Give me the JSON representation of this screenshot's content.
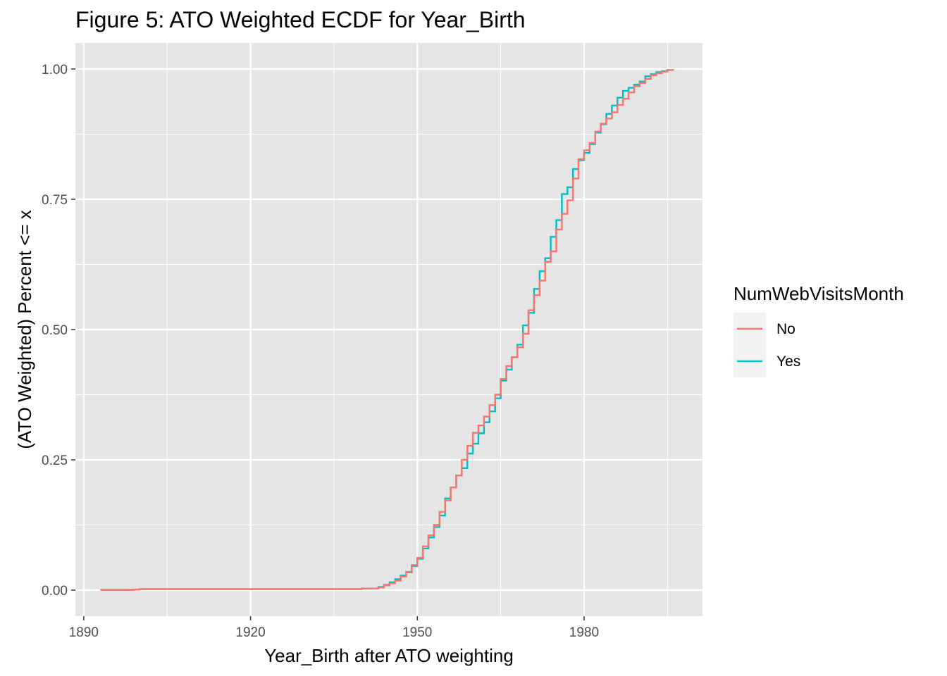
{
  "chart_data": {
    "type": "line",
    "step": true,
    "title": "Figure 5: ATO Weighted ECDF for Year_Birth",
    "xlabel": "Year_Birth after ATO weighting",
    "ylabel": "(ATO Weighted) Percent <= x",
    "xlim": [
      1888.5,
      2001.3
    ],
    "ylim": [
      -0.05,
      1.05
    ],
    "x_ticks": [
      1890,
      1920,
      1950,
      1980
    ],
    "x_tick_labels": [
      "1890",
      "1920",
      "1950",
      "1980"
    ],
    "y_ticks": [
      0,
      0.25,
      0.5,
      0.75,
      1
    ],
    "y_tick_labels": [
      "0.00",
      "0.25",
      "0.50",
      "0.75",
      "1.00"
    ],
    "grid": true,
    "background": "#E5E5E5",
    "legend": {
      "title": "NumWebVisitsMonth",
      "position": "right"
    },
    "series": [
      {
        "name": "No",
        "color": "#F8766D",
        "x": [
          1893,
          1899,
          1900,
          1940,
          1943,
          1944,
          1945,
          1946,
          1947,
          1948,
          1949,
          1950,
          1951,
          1952,
          1953,
          1954,
          1955,
          1956,
          1957,
          1958,
          1959,
          1960,
          1961,
          1962,
          1963,
          1964,
          1965,
          1966,
          1967,
          1968,
          1969,
          1970,
          1971,
          1972,
          1973,
          1974,
          1975,
          1976,
          1977,
          1978,
          1979,
          1980,
          1981,
          1982,
          1983,
          1984,
          1985,
          1986,
          1987,
          1988,
          1989,
          1990,
          1991,
          1992,
          1993,
          1994,
          1995,
          1996
        ],
        "y": [
          0.0005,
          0.001,
          0.002,
          0.003,
          0.005,
          0.009,
          0.013,
          0.018,
          0.026,
          0.035,
          0.048,
          0.062,
          0.084,
          0.105,
          0.125,
          0.15,
          0.172,
          0.197,
          0.22,
          0.25,
          0.277,
          0.302,
          0.316,
          0.333,
          0.355,
          0.375,
          0.405,
          0.43,
          0.447,
          0.466,
          0.492,
          0.537,
          0.566,
          0.594,
          0.63,
          0.65,
          0.692,
          0.722,
          0.748,
          0.79,
          0.827,
          0.844,
          0.858,
          0.88,
          0.895,
          0.905,
          0.917,
          0.931,
          0.943,
          0.955,
          0.967,
          0.973,
          0.981,
          0.988,
          0.992,
          0.995,
          0.998,
          1.0
        ]
      },
      {
        "name": "Yes",
        "color": "#00BFC4",
        "x": [
          1893,
          1899,
          1900,
          1940,
          1943,
          1944,
          1945,
          1946,
          1947,
          1948,
          1949,
          1950,
          1951,
          1952,
          1953,
          1954,
          1955,
          1956,
          1957,
          1958,
          1959,
          1960,
          1961,
          1962,
          1963,
          1964,
          1965,
          1966,
          1967,
          1968,
          1969,
          1970,
          1971,
          1972,
          1973,
          1974,
          1975,
          1976,
          1977,
          1978,
          1979,
          1980,
          1981,
          1982,
          1983,
          1984,
          1985,
          1986,
          1987,
          1988,
          1989,
          1990,
          1991,
          1992,
          1993,
          1994,
          1995,
          1996
        ],
        "y": [
          0.0005,
          0.001,
          0.002,
          0.003,
          0.006,
          0.01,
          0.015,
          0.021,
          0.028,
          0.034,
          0.046,
          0.06,
          0.08,
          0.101,
          0.121,
          0.143,
          0.176,
          0.197,
          0.22,
          0.234,
          0.262,
          0.281,
          0.301,
          0.322,
          0.343,
          0.368,
          0.402,
          0.423,
          0.447,
          0.471,
          0.508,
          0.532,
          0.578,
          0.612,
          0.637,
          0.678,
          0.71,
          0.76,
          0.773,
          0.808,
          0.825,
          0.839,
          0.856,
          0.878,
          0.894,
          0.914,
          0.93,
          0.945,
          0.958,
          0.964,
          0.97,
          0.976,
          0.986,
          0.99,
          0.994,
          0.996,
          0.998,
          1.0
        ]
      }
    ]
  }
}
